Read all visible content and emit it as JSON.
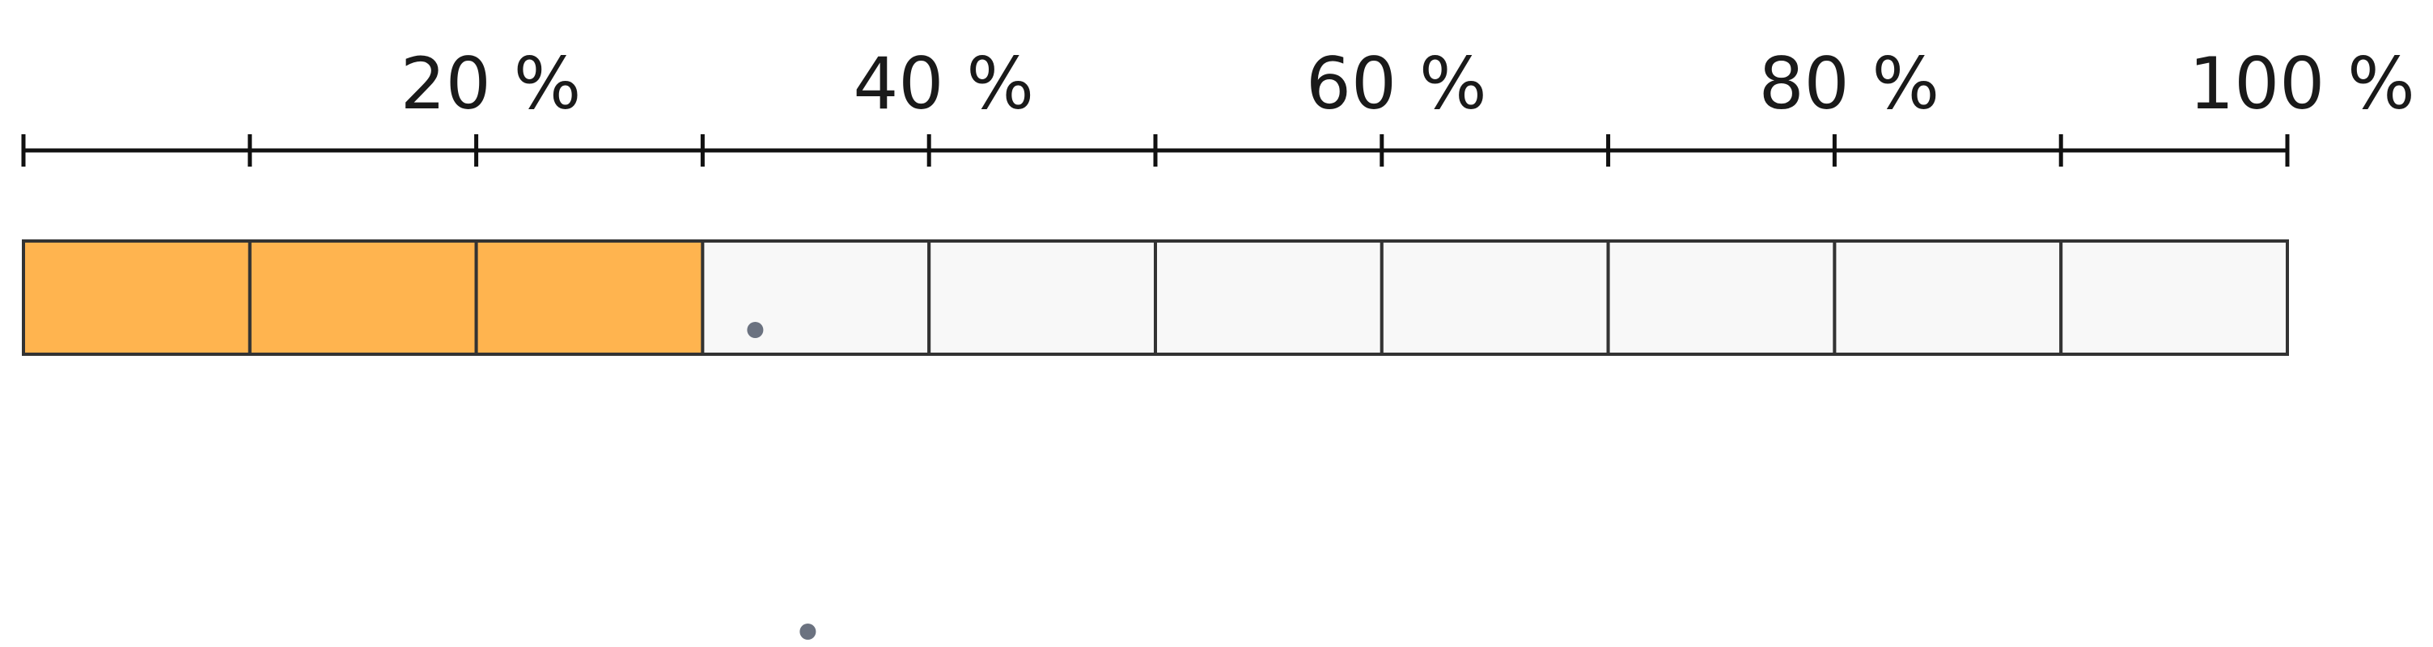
{
  "diagram": {
    "type": "percent-bar",
    "segments_total": 10,
    "segments_filled": 3,
    "filled_fraction": 0.3,
    "colors": {
      "fill": "#FFB44F",
      "empty": "#F8F8F8",
      "cell_border": "#333333",
      "axis": "#111111",
      "dot": "#6B7280"
    },
    "axis": {
      "tick_labels": [
        "20 %",
        "40 %",
        "60 %",
        "80 %",
        "100 %"
      ]
    },
    "markers": [
      {
        "name": "marker-dot-1"
      },
      {
        "name": "marker-dot-2"
      }
    ]
  }
}
